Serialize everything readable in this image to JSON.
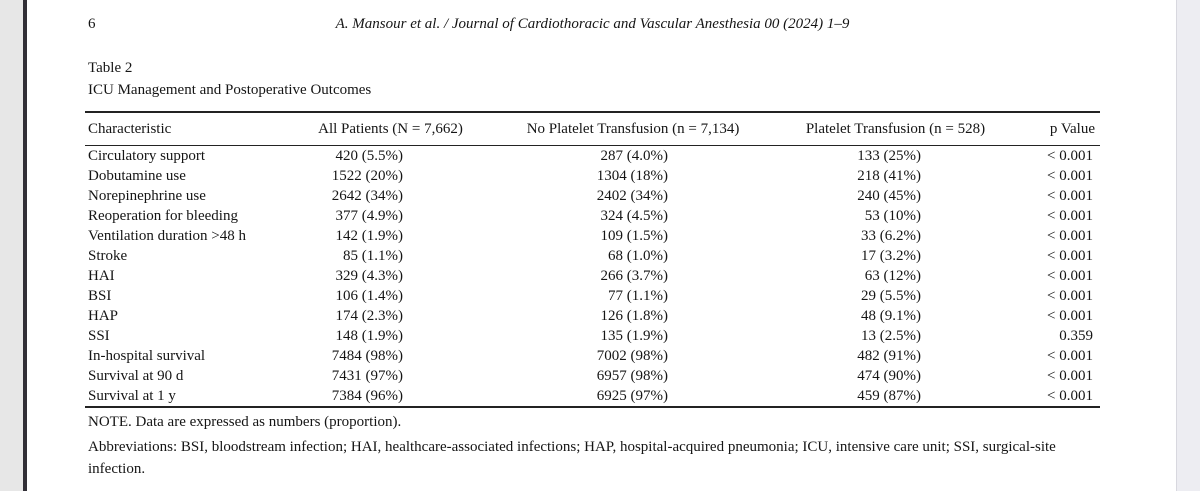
{
  "page": {
    "page_number": "6",
    "running_head": "A. Mansour et al. / Journal of Cardiothoracic and Vascular Anesthesia 00 (2024) 1–9"
  },
  "table": {
    "label": "Table 2",
    "caption": "ICU Management and Postoperative Outcomes",
    "columns": [
      "Characteristic",
      "All Patients (N = 7,662)",
      "No Platelet Transfusion (n = 7,134)",
      "Platelet Transfusion (n = 528)",
      "p Value"
    ],
    "rows": [
      {
        "characteristic": "Circulatory support",
        "all_patients": "420 (5.5%)",
        "no_transfusion": "287 (4.0%)",
        "transfusion": "133 (25%)",
        "p_value": "< 0.001"
      },
      {
        "characteristic": "Dobutamine use",
        "all_patients": "1522 (20%)",
        "no_transfusion": "1304 (18%)",
        "transfusion": "218 (41%)",
        "p_value": "< 0.001"
      },
      {
        "characteristic": "Norepinephrine use",
        "all_patients": "2642 (34%)",
        "no_transfusion": "2402 (34%)",
        "transfusion": "240 (45%)",
        "p_value": "< 0.001"
      },
      {
        "characteristic": "Reoperation for bleeding",
        "all_patients": "377 (4.9%)",
        "no_transfusion": "324 (4.5%)",
        "transfusion": "53 (10%)",
        "p_value": "< 0.001"
      },
      {
        "characteristic": "Ventilation duration >48 h",
        "all_patients": "142 (1.9%)",
        "no_transfusion": "109 (1.5%)",
        "transfusion": "33 (6.2%)",
        "p_value": "< 0.001"
      },
      {
        "characteristic": "Stroke",
        "all_patients": "85 (1.1%)",
        "no_transfusion": "68 (1.0%)",
        "transfusion": "17 (3.2%)",
        "p_value": "< 0.001"
      },
      {
        "characteristic": "HAI",
        "all_patients": "329 (4.3%)",
        "no_transfusion": "266 (3.7%)",
        "transfusion": "63 (12%)",
        "p_value": "< 0.001"
      },
      {
        "characteristic": "BSI",
        "all_patients": "106 (1.4%)",
        "no_transfusion": "77 (1.1%)",
        "transfusion": "29 (5.5%)",
        "p_value": "< 0.001"
      },
      {
        "characteristic": "HAP",
        "all_patients": "174 (2.3%)",
        "no_transfusion": "126 (1.8%)",
        "transfusion": "48 (9.1%)",
        "p_value": "< 0.001"
      },
      {
        "characteristic": "SSI",
        "all_patients": "148 (1.9%)",
        "no_transfusion": "135 (1.9%)",
        "transfusion": "13 (2.5%)",
        "p_value": "0.359"
      },
      {
        "characteristic": "In-hospital survival",
        "all_patients": "7484 (98%)",
        "no_transfusion": "7002 (98%)",
        "transfusion": "482 (91%)",
        "p_value": "< 0.001"
      },
      {
        "characteristic": "Survival at 90 d",
        "all_patients": "7431 (97%)",
        "no_transfusion": "6957 (98%)",
        "transfusion": "474 (90%)",
        "p_value": "< 0.001"
      },
      {
        "characteristic": "Survival at 1 y",
        "all_patients": "7384 (96%)",
        "no_transfusion": "6925 (97%)",
        "transfusion": "459 (87%)",
        "p_value": "< 0.001"
      }
    ]
  },
  "notes": {
    "note": "NOTE. Data are expressed as numbers (proportion).",
    "abbreviations_line1": "Abbreviations: BSI, bloodstream infection; HAI, healthcare-associated infections; HAP, hospital-acquired pneumonia; ICU, intensive care unit; SSI, surgical-site",
    "abbreviations_line2": "infection."
  },
  "colors": {
    "page_background": "#ffffff",
    "outside_left_strip": "#e7e7e7",
    "page_edge_line": "#312f36",
    "right_gutter": "#ededf2",
    "rule_color": "#232323",
    "text_color": "#151515"
  }
}
